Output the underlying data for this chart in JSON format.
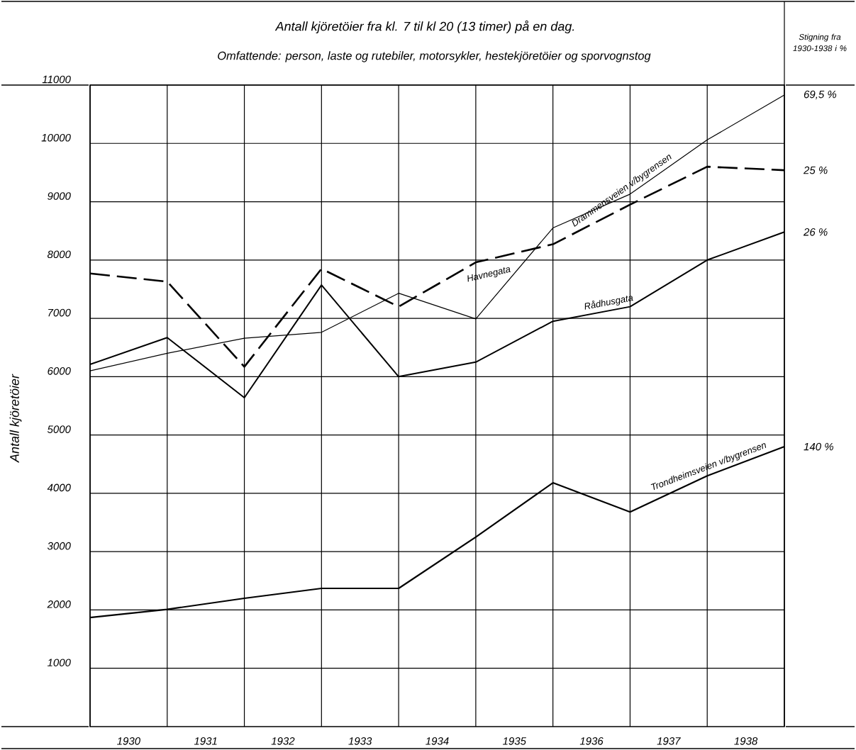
{
  "chart_data": {
    "type": "line",
    "title": "Antall kjöretöier fra kl. 7 til kl 20 (13 timer) på en dag.",
    "subtitle": "Omfattende: person, laste og rutebiler, motorsykler, hestekjöretöier og sporvognstog",
    "ylabel": "Antall kjöretöier",
    "x": [
      1929.5,
      1930.5,
      1931.5,
      1932.5,
      1933.5,
      1934.5,
      1935.5,
      1936.5,
      1937.5,
      1938.5
    ],
    "xlim": [
      1929.5,
      1938.5
    ],
    "xticks": [
      {
        "value": 1929.5,
        "label": null
      },
      {
        "value": 1930.5,
        "label": null
      },
      {
        "value": 1931.5,
        "label": null
      },
      {
        "value": 1932.5,
        "label": null
      },
      {
        "value": 1933.5,
        "label": null
      },
      {
        "value": 1934.5,
        "label": null
      },
      {
        "value": 1935.5,
        "label": null
      },
      {
        "value": 1936.5,
        "label": null
      },
      {
        "value": 1937.5,
        "label": null
      },
      {
        "value": 1938.5,
        "label": null
      },
      1930,
      1931,
      1932,
      1933,
      1934,
      1935,
      1936,
      1937,
      1938
    ],
    "ylim": [
      0,
      11000
    ],
    "yticks": [
      1000,
      2000,
      3000,
      4000,
      5000,
      6000,
      7000,
      8000,
      9000,
      10000,
      11000
    ],
    "grid": true,
    "marker": "none",
    "series": [
      {
        "name": "Drammensveien v/bygrensen",
        "color": "#000000",
        "line_style": "solid",
        "values": [
          6100,
          6400,
          6660,
          6760,
          7430,
          6990,
          8550,
          9130,
          10060,
          10830
        ]
      },
      {
        "name": "Havnegata",
        "color": "#000000",
        "line_style": "dashed",
        "values": [
          7770,
          7630,
          6170,
          7850,
          7200,
          7960,
          8270,
          8950,
          9600,
          9540
        ]
      },
      {
        "name": "Rådhusgata",
        "color": "#000000",
        "line_style": "solid",
        "values": [
          6210,
          6670,
          5640,
          7570,
          6000,
          6250,
          6950,
          7200,
          8000,
          8480
        ]
      },
      {
        "name": "Trondheimsveien v/bygrensen",
        "color": "#000000",
        "line_style": "solid",
        "values": [
          1870,
          2010,
          2200,
          2370,
          2370,
          3250,
          4180,
          3680,
          4300,
          4800
        ]
      }
    ],
    "annotations": [
      "Stigning fra 1930-1938 i %",
      "69,5 %",
      "25 %",
      "26 %",
      "140 %"
    ]
  }
}
